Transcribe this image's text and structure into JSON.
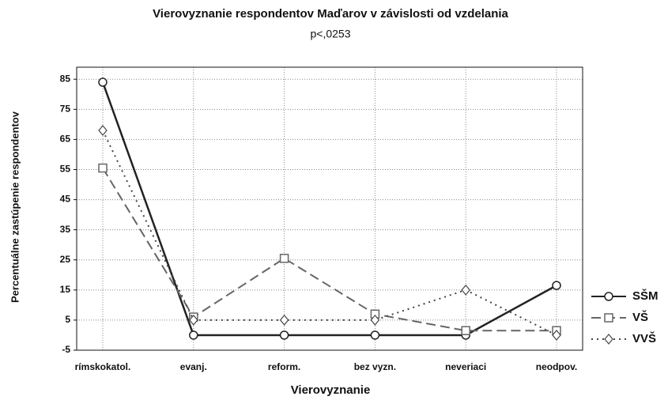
{
  "chart_data": {
    "type": "line",
    "title": "Vierovyznanie respondentov Maďarov v závislosti od vzdelania",
    "subtitle": "p<,0253",
    "x_label": "Vierovyznanie",
    "y_label": "Percentuálne zastúpenie respondentov",
    "categories": [
      "rímskokatol.",
      "evanj.",
      "reform.",
      "bez vyzn.",
      "neveriaci",
      "neodpov."
    ],
    "series": [
      {
        "name": "SŠM",
        "color": "#222222",
        "values": [
          84,
          0,
          0,
          0,
          0,
          16.5
        ]
      },
      {
        "name": "VŠ",
        "color": "#666666",
        "values": [
          55.5,
          6,
          25.5,
          7,
          1.5,
          1.5
        ]
      },
      {
        "name": "VVŠ",
        "color": "#444444",
        "values": [
          68,
          5,
          5,
          5,
          15,
          0
        ]
      }
    ],
    "ylim": [
      -5,
      89
    ],
    "yticks": [
      -5,
      5,
      15,
      25,
      35,
      45,
      55,
      65,
      75,
      85
    ],
    "grid": true,
    "legend": "right"
  }
}
